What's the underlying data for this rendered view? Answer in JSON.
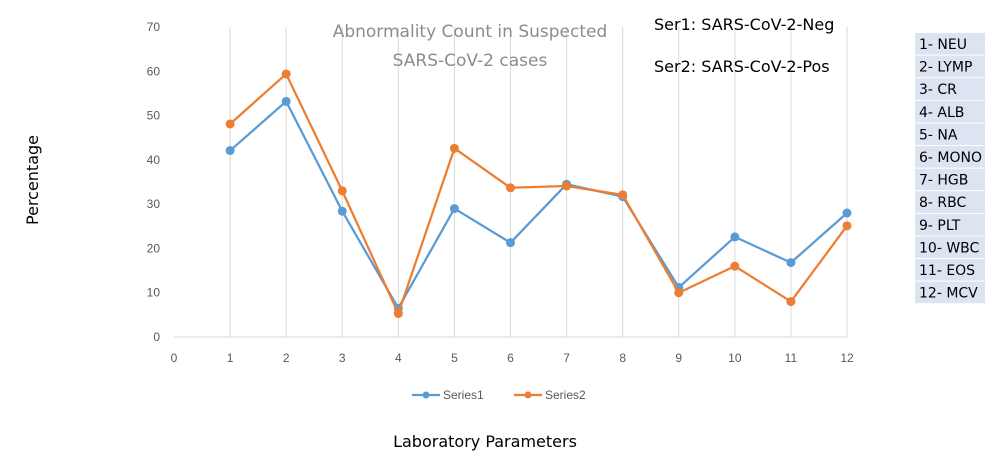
{
  "chart_data": {
    "type": "line",
    "title_lines": [
      "Abnormality Count in Suspected",
      "SARS-CoV-2 cases"
    ],
    "xlabel": "Laboratory Parameters",
    "ylabel": "Percentage",
    "xlim": [
      0,
      12
    ],
    "ylim": [
      0,
      70
    ],
    "x_ticks": [
      0,
      1,
      2,
      3,
      4,
      5,
      6,
      7,
      8,
      9,
      10,
      11,
      12
    ],
    "y_ticks": [
      0,
      10,
      20,
      30,
      40,
      50,
      60,
      70
    ],
    "grid": "vertical",
    "legend_position": "bottom",
    "x": [
      1,
      2,
      3,
      4,
      5,
      6,
      7,
      8,
      9,
      10,
      11,
      12
    ],
    "series": [
      {
        "name": "Series1",
        "color": "#5b9bd5",
        "values": [
          42.1,
          53.2,
          28.4,
          6.5,
          29.0,
          21.3,
          34.5,
          31.7,
          11.2,
          22.6,
          16.8,
          28.0
        ]
      },
      {
        "name": "Series2",
        "color": "#ed7d31",
        "values": [
          48.1,
          59.4,
          33.0,
          5.3,
          42.6,
          33.7,
          34.1,
          32.1,
          10.0,
          16.0,
          8.0,
          25.1
        ]
      }
    ],
    "annotations": [
      "Ser1: SARS-CoV-2-Neg",
      "Ser2: SARS-CoV-2-Pos"
    ],
    "parameter_key": [
      "1- NEU",
      "2- LYMP",
      "3- CR",
      "4- ALB",
      "5- NA",
      "6- MONO",
      "7- HGB",
      "8- RBC",
      "9- PLT",
      "10- WBC",
      "11- EOS",
      "12- MCV"
    ]
  }
}
